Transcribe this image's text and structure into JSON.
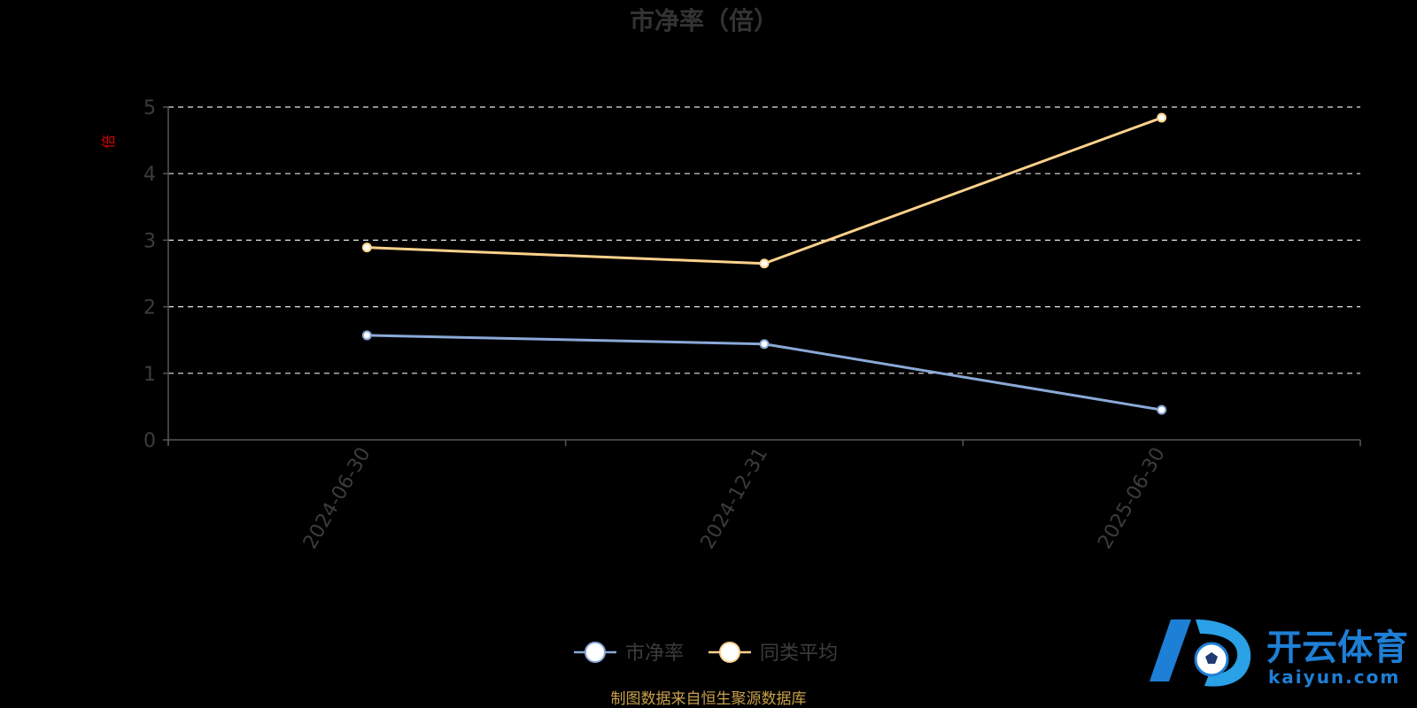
{
  "chart_data": {
    "type": "line",
    "title": "市净率（倍）",
    "ylabel": "倍",
    "xlabel": "",
    "categories": [
      "2024-06-30",
      "2024-12-31",
      "2025-06-30"
    ],
    "series": [
      {
        "name": "市净率",
        "values": [
          1.57,
          1.44,
          0.45
        ],
        "color": "#8aa9d8"
      },
      {
        "name": "同类平均",
        "values": [
          2.89,
          2.65,
          4.84
        ],
        "color": "#fed28c"
      }
    ],
    "ylim": [
      0,
      5
    ],
    "yticks": [
      0,
      1,
      2,
      3,
      4,
      5
    ],
    "grid": true,
    "legend": "bottom-center"
  },
  "source_note": "制图数据来自恒生聚源数据库",
  "watermark": {
    "logo_text": "开云体育",
    "sub_text": "kaiyun.com",
    "color": "#1e7fd6"
  }
}
